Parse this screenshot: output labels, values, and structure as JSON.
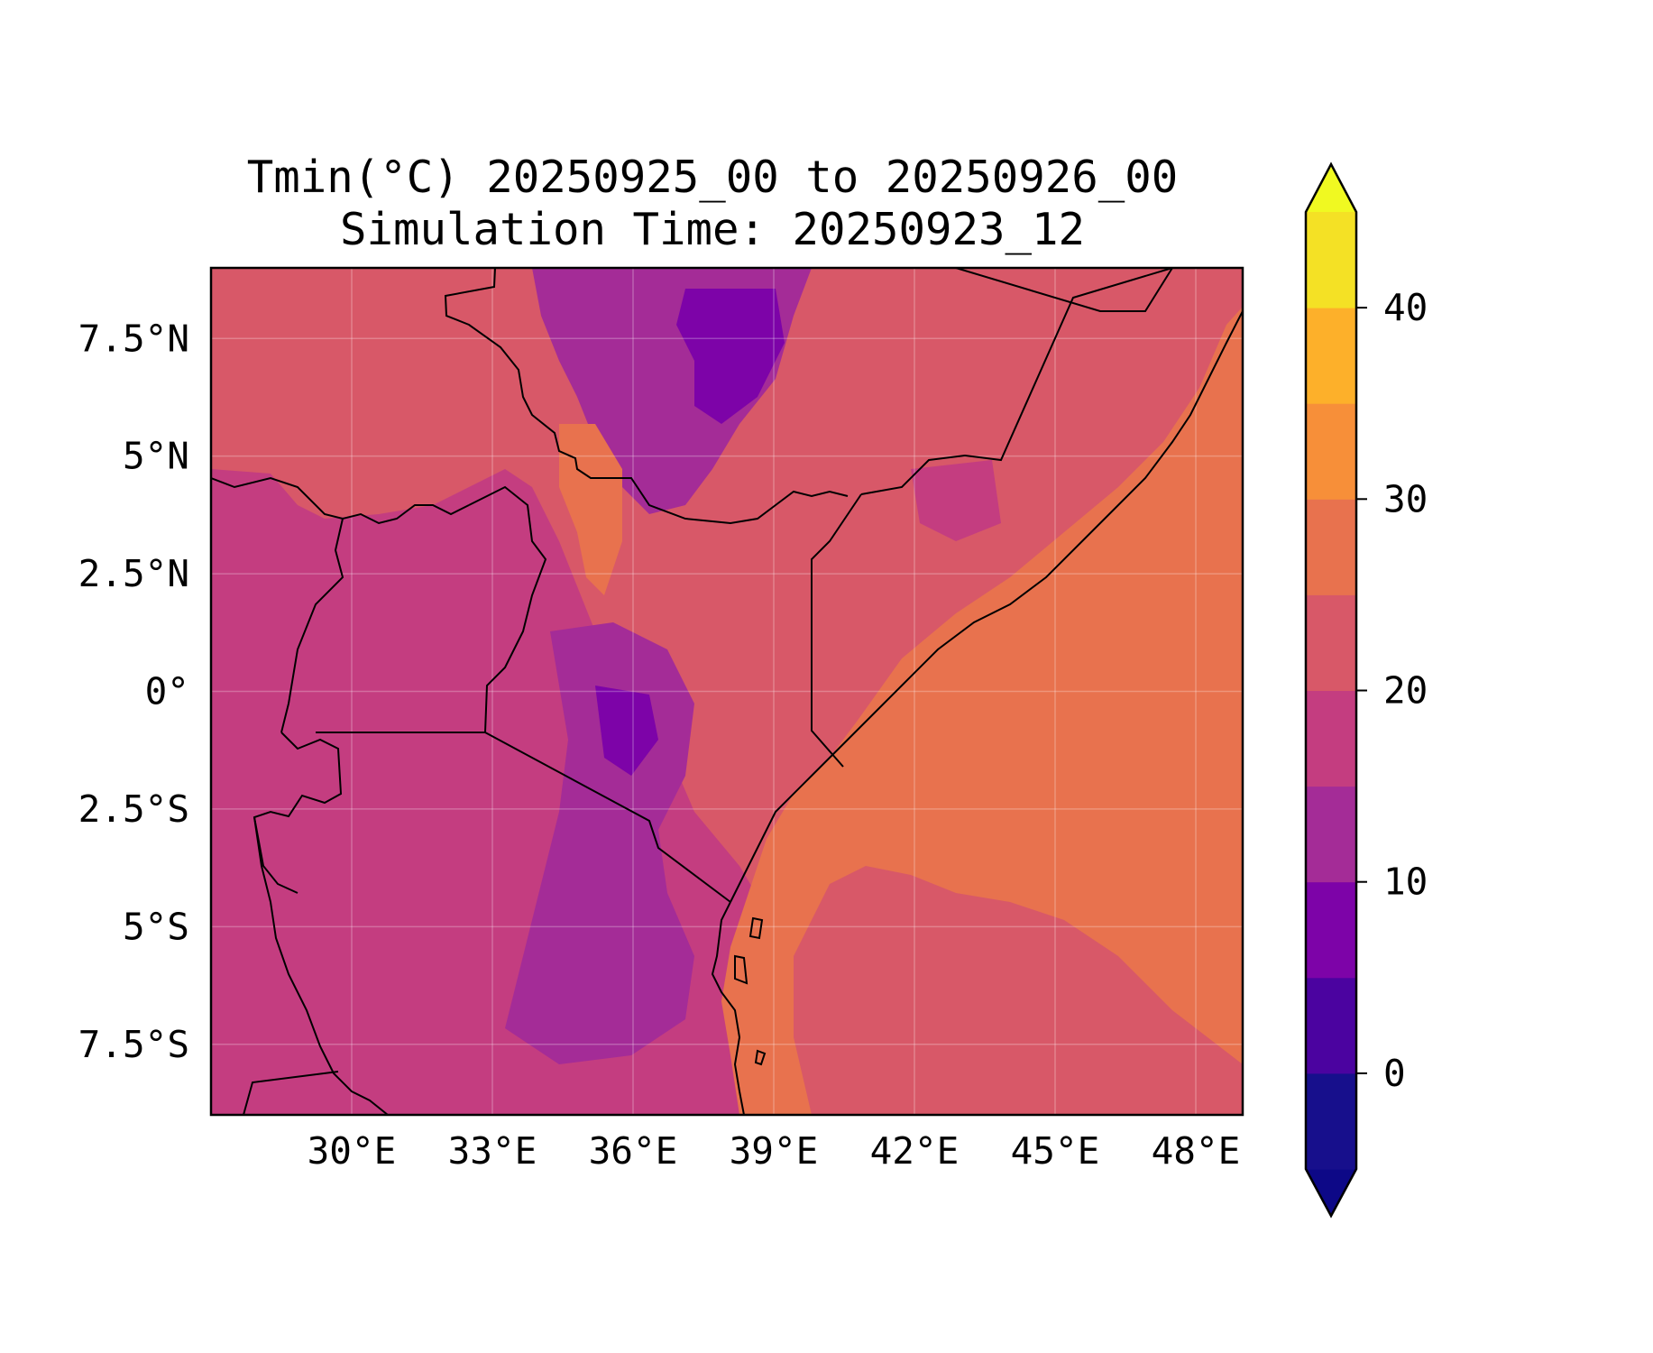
{
  "title": {
    "line1": "Tmin(°C) 20250925_00 to 20250926_00",
    "line2": "Simulation Time: 20250923_12"
  },
  "map": {
    "variable": "Tmin",
    "unit": "°C",
    "region": "East Africa",
    "lon_range": [
      27.0,
      49.0
    ],
    "lat_range": [
      -9.0,
      9.0
    ],
    "grid": true,
    "xticks": [
      {
        "value": 30,
        "label": "30°E"
      },
      {
        "value": 33,
        "label": "33°E"
      },
      {
        "value": 36,
        "label": "36°E"
      },
      {
        "value": 39,
        "label": "39°E"
      },
      {
        "value": 42,
        "label": "42°E"
      },
      {
        "value": 45,
        "label": "45°E"
      },
      {
        "value": 48,
        "label": "48°E"
      }
    ],
    "yticks": [
      {
        "value": 7.5,
        "label": "7.5°N"
      },
      {
        "value": 5,
        "label": "5°N"
      },
      {
        "value": 2.5,
        "label": "2.5°N"
      },
      {
        "value": 0,
        "label": "0°"
      },
      {
        "value": -2.5,
        "label": "2.5°S"
      },
      {
        "value": -5,
        "label": "5°S"
      },
      {
        "value": -7.5,
        "label": "7.5°S"
      }
    ]
  },
  "colorbar": {
    "colormap": "plasma",
    "extend": "both",
    "levels": [
      -5,
      0,
      5,
      10,
      15,
      20,
      25,
      30,
      35,
      40,
      45
    ],
    "colors": [
      "#170f8c",
      "#4b03a0",
      "#7d03a8",
      "#a42c97",
      "#c43d80",
      "#d85868",
      "#e8724e",
      "#f78f39",
      "#fdb02a",
      "#f4e125"
    ],
    "under_color": "#0d0887",
    "over_color": "#f0f921",
    "tick_values": [
      0,
      10,
      20,
      30,
      40
    ],
    "tick_labels": [
      "0",
      "10",
      "20",
      "30",
      "40"
    ]
  },
  "colors": {
    "ocean": "#e8724e",
    "land_default": "#d85868",
    "border": "#000000",
    "grid": "#ffffff"
  }
}
